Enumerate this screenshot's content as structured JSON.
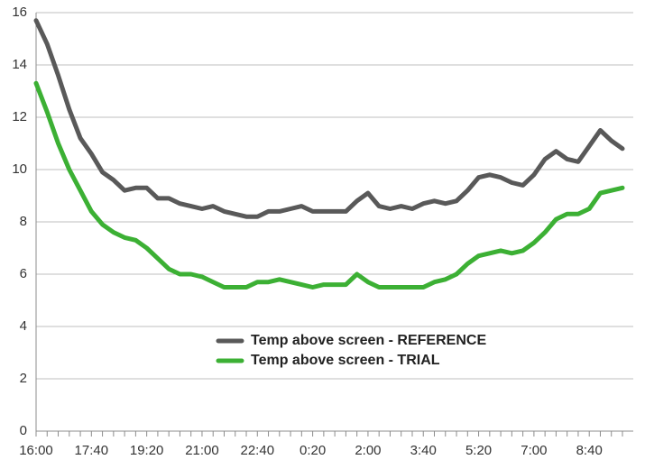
{
  "chart_data": {
    "type": "line",
    "categories": [
      "16:00",
      null,
      null,
      null,
      null,
      "17:40",
      null,
      null,
      null,
      null,
      "19:20",
      null,
      null,
      null,
      null,
      "21:00",
      null,
      null,
      null,
      null,
      "22:40",
      null,
      null,
      null,
      null,
      "0:20",
      null,
      null,
      null,
      null,
      "2:00",
      null,
      null,
      null,
      null,
      "3:40",
      null,
      null,
      null,
      null,
      "5:20",
      null,
      null,
      null,
      null,
      "7:00",
      null,
      null,
      null,
      null,
      "8:40",
      null,
      null,
      null
    ],
    "series": [
      {
        "name": "Temp above screen - REFERENCE",
        "color": "#595959",
        "values": [
          15.7,
          14.8,
          13.6,
          12.3,
          11.2,
          10.6,
          9.9,
          9.6,
          9.2,
          9.3,
          9.3,
          8.9,
          8.9,
          8.7,
          8.6,
          8.5,
          8.6,
          8.4,
          8.3,
          8.2,
          8.2,
          8.4,
          8.4,
          8.5,
          8.6,
          8.4,
          8.4,
          8.4,
          8.4,
          8.8,
          9.1,
          8.6,
          8.5,
          8.6,
          8.5,
          8.7,
          8.8,
          8.7,
          8.8,
          9.2,
          9.7,
          9.8,
          9.7,
          9.5,
          9.4,
          9.8,
          10.4,
          10.7,
          10.4,
          10.3,
          10.9,
          11.5,
          11.1,
          10.8
        ]
      },
      {
        "name": "Temp above screen - TRIAL",
        "color": "#3cb034",
        "values": [
          13.3,
          12.2,
          11.0,
          10.0,
          9.2,
          8.4,
          7.9,
          7.6,
          7.4,
          7.3,
          7.0,
          6.6,
          6.2,
          6.0,
          6.0,
          5.9,
          5.7,
          5.5,
          5.5,
          5.5,
          5.7,
          5.7,
          5.8,
          5.7,
          5.6,
          5.5,
          5.6,
          5.6,
          5.6,
          6.0,
          5.7,
          5.5,
          5.5,
          5.5,
          5.5,
          5.5,
          5.7,
          5.8,
          6.0,
          6.4,
          6.7,
          6.8,
          6.9,
          6.8,
          6.9,
          7.2,
          7.6,
          8.1,
          8.3,
          8.3,
          8.5,
          9.1,
          9.2,
          9.3
        ]
      }
    ],
    "ylim": [
      0,
      16
    ],
    "yticks": [
      0,
      2,
      4,
      6,
      8,
      10,
      12,
      14,
      16
    ],
    "grid": true,
    "legend": "bottom"
  }
}
